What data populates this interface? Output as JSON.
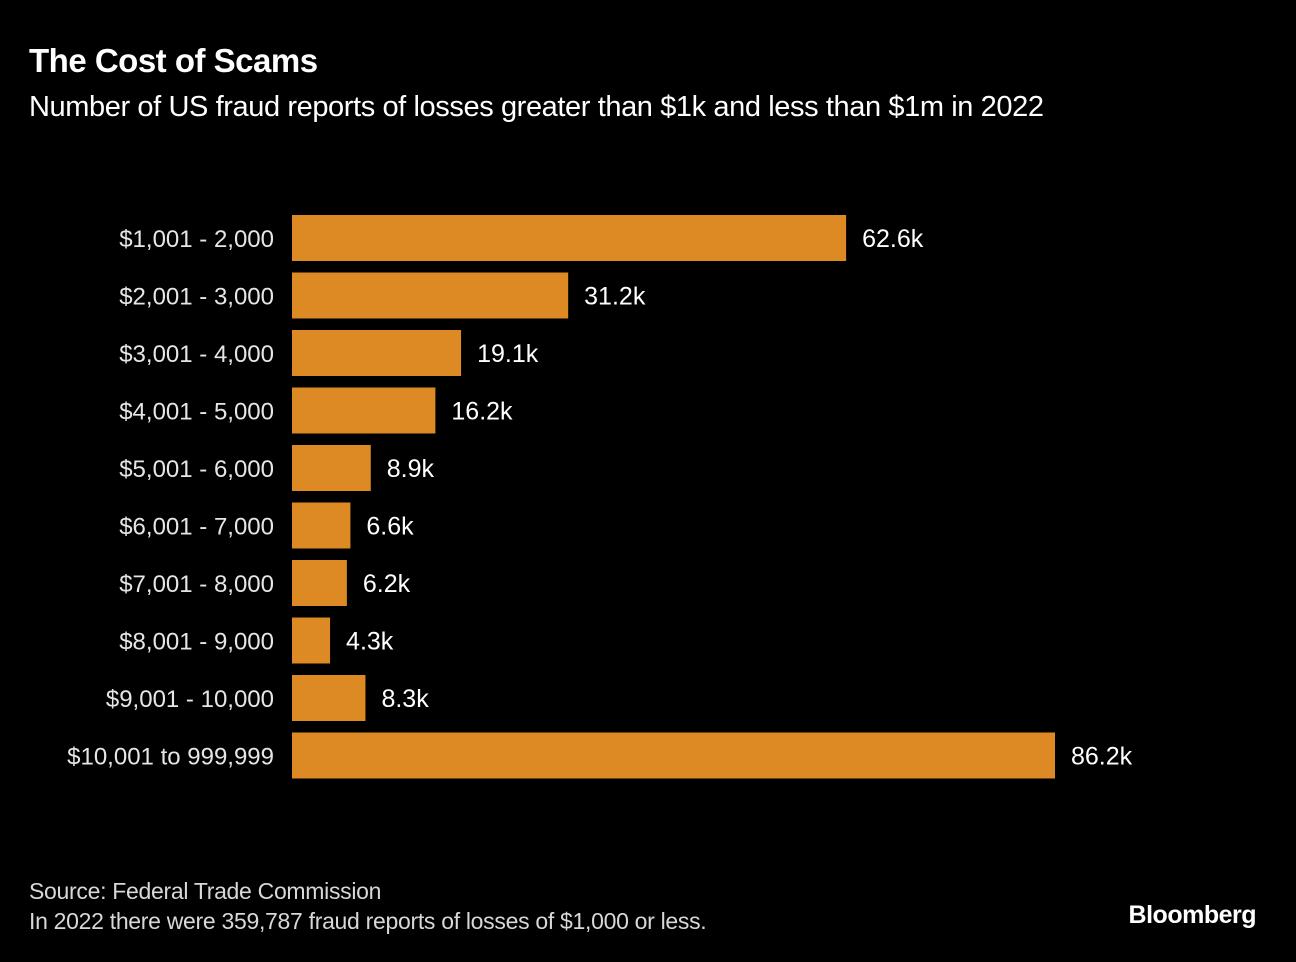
{
  "chart_data": {
    "type": "bar",
    "orientation": "horizontal",
    "title": "The Cost of Scams",
    "subtitle": "Number of US fraud reports of losses greater than $1k and less than $1m in 2022",
    "categories": [
      "$1,001 - 2,000",
      "$2,001 - 3,000",
      "$3,001 - 4,000",
      "$4,001 - 5,000",
      "$5,001 - 6,000",
      "$6,001 - 7,000",
      "$7,001 - 8,000",
      "$8,001 - 9,000",
      "$9,001 - 10,000",
      "$10,001 to 999,999"
    ],
    "values": [
      62.6,
      31.2,
      19.1,
      16.2,
      8.9,
      6.6,
      6.2,
      4.3,
      8.3,
      86.2
    ],
    "data_labels": [
      "62.6k",
      "31.2k",
      "19.1k",
      "16.2k",
      "8.9k",
      "6.6k",
      "6.2k",
      "4.3k",
      "8.3k",
      "86.2k"
    ],
    "unit": "thousands of reports",
    "xlim": [
      0,
      86.2
    ],
    "grid": false,
    "bar_color": "#DD8A24",
    "background": "#000000"
  },
  "footer": {
    "source": "Source: Federal Trade Commission",
    "note": "In 2022 there were 359,787 fraud reports of losses of $1,000 or less."
  },
  "logo": "Bloomberg"
}
